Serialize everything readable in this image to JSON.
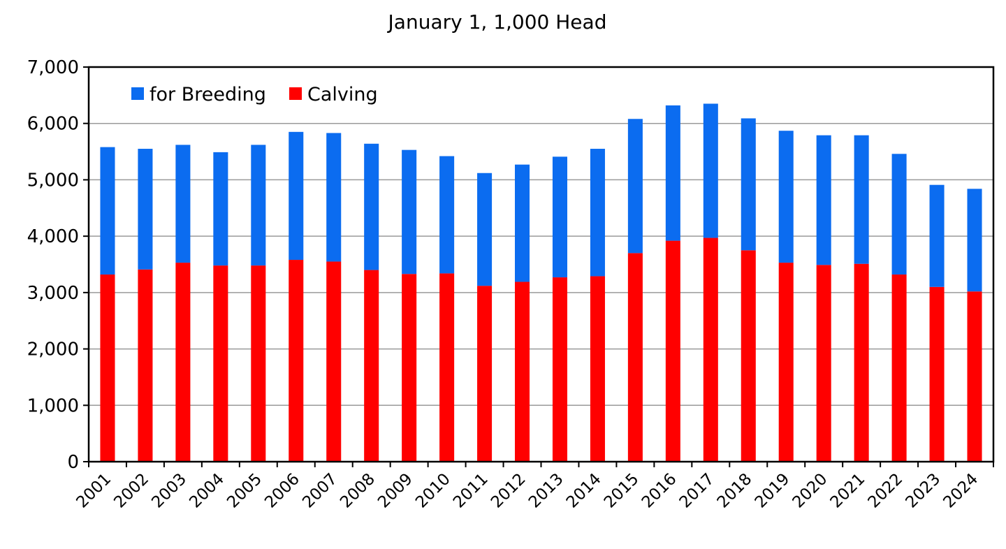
{
  "chart_data": {
    "type": "bar",
    "stacked": true,
    "title": "January 1, 1,000 Head",
    "xlabel": "",
    "ylabel": "",
    "ylim": [
      0,
      7000
    ],
    "yticks": [
      0,
      1000,
      2000,
      3000,
      4000,
      5000,
      6000,
      7000
    ],
    "ytick_labels": [
      "0",
      "1,000",
      "2,000",
      "3,000",
      "4,000",
      "5,000",
      "6,000",
      "7,000"
    ],
    "grid": true,
    "legend_position": "top-left",
    "categories": [
      "2001",
      "2002",
      "2003",
      "2004",
      "2005",
      "2006",
      "2007",
      "2008",
      "2009",
      "2010",
      "2011",
      "2012",
      "2013",
      "2014",
      "2015",
      "2016",
      "2017",
      "2018",
      "2019",
      "2020",
      "2021",
      "2022",
      "2023",
      "2024"
    ],
    "series": [
      {
        "name": "Calving",
        "color": "#ff0000",
        "values": [
          3320,
          3410,
          3530,
          3480,
          3480,
          3580,
          3550,
          3400,
          3330,
          3340,
          3120,
          3190,
          3270,
          3290,
          3700,
          3920,
          3970,
          3750,
          3530,
          3490,
          3510,
          3320,
          3100,
          3020
        ]
      },
      {
        "name": "for Breeding",
        "color": "#0b6cf0",
        "values": [
          2260,
          2140,
          2090,
          2010,
          2140,
          2270,
          2280,
          2240,
          2200,
          2080,
          2000,
          2080,
          2140,
          2260,
          2380,
          2400,
          2380,
          2340,
          2340,
          2300,
          2280,
          2140,
          1810,
          1820
        ]
      }
    ],
    "legend_order": [
      "for Breeding",
      "Calving"
    ]
  }
}
